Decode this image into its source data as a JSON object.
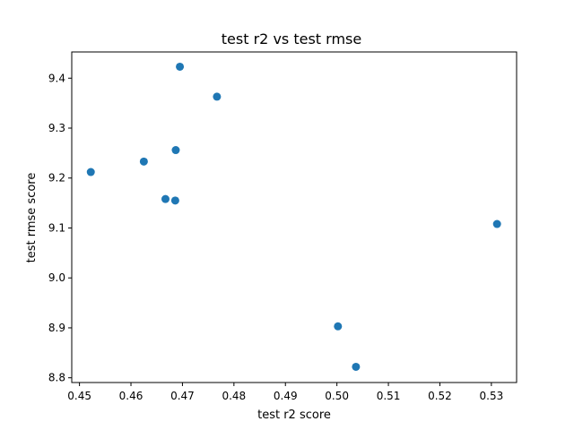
{
  "chart_data": {
    "type": "scatter",
    "title": "test r2 vs test rmse",
    "xlabel": "test r2 score",
    "ylabel": "test rmse score",
    "xlim": [
      0.4485,
      0.5349
    ],
    "ylim": [
      8.7905,
      9.4525
    ],
    "xticks": [
      0.45,
      0.46,
      0.47,
      0.48,
      0.49,
      0.5,
      0.51,
      0.52,
      0.53
    ],
    "xtick_labels": [
      "0.45",
      "0.46",
      "0.47",
      "0.48",
      "0.49",
      "0.50",
      "0.51",
      "0.52",
      "0.53"
    ],
    "yticks": [
      8.8,
      8.9,
      9.0,
      9.1,
      9.2,
      9.3,
      9.4
    ],
    "ytick_labels": [
      "8.8",
      "8.9",
      "9.0",
      "9.1",
      "9.2",
      "9.3",
      "9.4"
    ],
    "grid": false,
    "marker_color": "#1f77b4",
    "points": [
      {
        "x": 0.4522,
        "y": 9.212
      },
      {
        "x": 0.4625,
        "y": 9.233
      },
      {
        "x": 0.4667,
        "y": 9.158
      },
      {
        "x": 0.4686,
        "y": 9.155
      },
      {
        "x": 0.4687,
        "y": 9.256
      },
      {
        "x": 0.4695,
        "y": 9.423
      },
      {
        "x": 0.4767,
        "y": 9.363
      },
      {
        "x": 0.5002,
        "y": 8.903
      },
      {
        "x": 0.5037,
        "y": 8.822
      },
      {
        "x": 0.5311,
        "y": 9.108
      }
    ]
  }
}
